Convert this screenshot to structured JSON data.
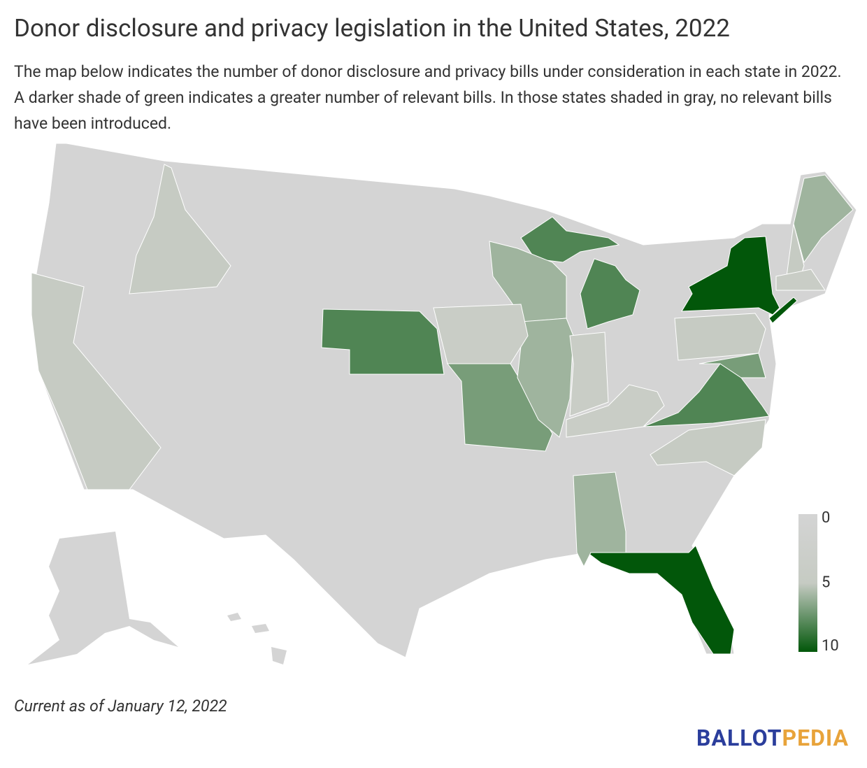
{
  "chart_data": {
    "type": "choropleth",
    "title": "Donor disclosure and privacy legislation in the United States, 2022",
    "subtitle": "The map below indicates the number of donor disclosure and privacy bills under consideration in each state in 2022. A darker shade of green indicates a greater number of relevant bills. In those states shaded in gray, no relevant bills have been introduced.",
    "note": "Current as of January 12, 2022",
    "logo": {
      "first": "BALLOT",
      "second": "PEDIA"
    },
    "regions": [
      "New York",
      "Florida",
      "Nebraska",
      "Michigan",
      "Virginia",
      "Missouri",
      "Maryland",
      "Wisconsin",
      "Illinois",
      "Alabama",
      "Pennsylvania",
      "Iowa",
      "Indiana",
      "Kentucky",
      "North Carolina",
      "California",
      "Idaho",
      "Maine",
      "New Hampshire",
      "Massachusetts"
    ],
    "values": [
      10,
      10,
      8,
      8,
      8,
      7,
      7,
      6,
      6,
      6,
      5,
      4,
      4,
      4,
      5,
      5,
      5,
      6,
      5,
      4
    ],
    "base_color": "#d4d4d4",
    "legend": {
      "ticks": [
        0,
        5,
        10
      ],
      "colors": [
        "#d4d4d4",
        "#c6cbc3",
        "#02570a"
      ]
    }
  }
}
